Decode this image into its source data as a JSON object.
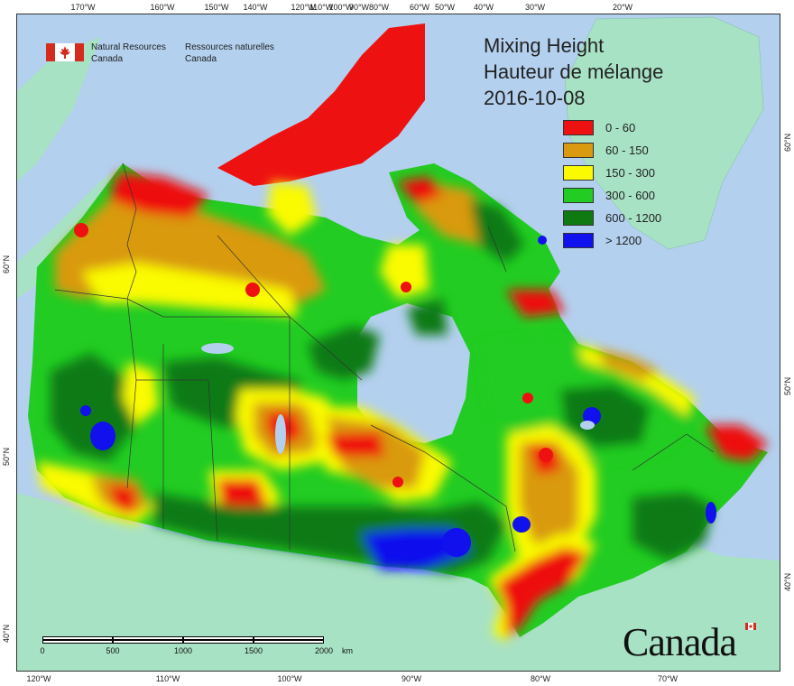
{
  "map": {
    "title": "Mixing Height",
    "title_fr": "Hauteur de mélange",
    "date": "2016-10-08",
    "agency_en": [
      "Natural Resources",
      "Canada"
    ],
    "agency_fr": [
      "Ressources naturelles",
      "Canada"
    ],
    "wordmark": "Canada",
    "legend": [
      {
        "label": "0 - 60",
        "color": "#ee1111"
      },
      {
        "label": "60 - 150",
        "color": "#d99a0f"
      },
      {
        "label": "150 - 300",
        "color": "#fafa00"
      },
      {
        "label": "300 - 600",
        "color": "#22cc22"
      },
      {
        "label": "600 - 1200",
        "color": "#0f7a12"
      },
      {
        "label": "> 1200",
        "color": "#1111ee"
      }
    ],
    "scalebar": {
      "ticks": [
        "0",
        "500",
        "1000",
        "1500",
        "2000"
      ],
      "unit": "km"
    },
    "lon_labels_top": [
      "170°W",
      "160°W",
      "150°W",
      "140°W",
      "120°W",
      "110°W",
      "100°W",
      "90°W",
      "80°W",
      "60°W",
      "50°W",
      "40°W",
      "30°W",
      "20°W"
    ],
    "lon_labels_bottom": [
      "120°W",
      "110°W",
      "100°W",
      "90°W",
      "80°W",
      "70°W"
    ],
    "lat_labels_left": [
      "60°N",
      "50°N",
      "40°N"
    ],
    "lat_labels_right": [
      "60°N",
      "50°N",
      "40°N"
    ],
    "colors": {
      "ocean": "#b3d0ee",
      "foreign_land": "#a8e2c4",
      "border": "#333333"
    }
  }
}
